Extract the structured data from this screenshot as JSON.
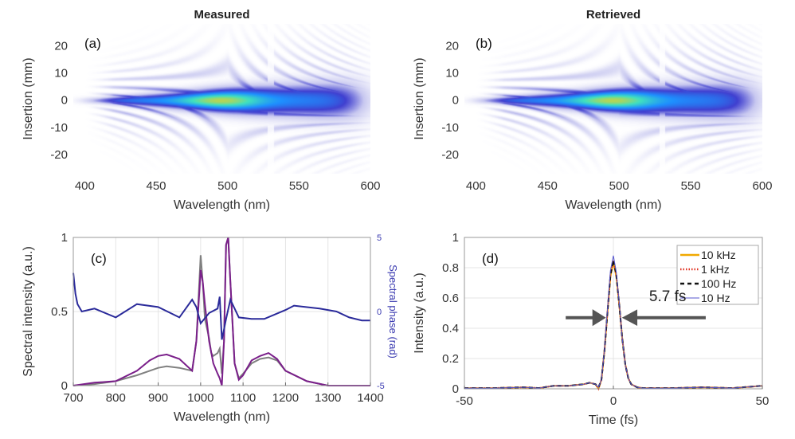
{
  "chart_data": [
    {
      "panel": "(a)",
      "type": "heatmap",
      "title": "Measured",
      "xlabel": "Wavelength (nm)",
      "ylabel": "Insertion (mm)",
      "xticks": [
        400,
        450,
        500,
        550,
        600
      ],
      "yticks": [
        20,
        10,
        0,
        -10,
        -20
      ],
      "xlim": [
        392,
        600
      ],
      "ylim": [
        -27,
        28
      ],
      "colormap": [
        "#ffffff",
        "#c8c8f0",
        "#4040d0",
        "#1e90ff",
        "#40e0c0",
        "#f0d020"
      ]
    },
    {
      "panel": "(b)",
      "type": "heatmap",
      "title": "Retrieved",
      "xlabel": "Wavelength (nm)",
      "ylabel": "Insertion (mm)",
      "xticks": [
        400,
        450,
        500,
        550,
        600
      ],
      "yticks": [
        20,
        10,
        0,
        -10,
        -20
      ],
      "xlim": [
        392,
        600
      ],
      "ylim": [
        -27,
        28
      ],
      "colormap": [
        "#ffffff",
        "#c8c8f0",
        "#4040d0",
        "#1e90ff",
        "#40e0c0",
        "#f0d020"
      ]
    },
    {
      "panel": "(c)",
      "type": "line",
      "xlabel": "Wavelength (nm)",
      "ylabel": "Spectral intensity (a.u.)",
      "y2label": "Spectral phase (rad)",
      "xlim": [
        700,
        1400
      ],
      "ylim": [
        0,
        1
      ],
      "y2lim": [
        -5,
        5
      ],
      "xticks": [
        700,
        800,
        900,
        1000,
        1100,
        1200,
        1300,
        1400
      ],
      "yticks": [
        0,
        0.5,
        1
      ],
      "y2ticks": [
        -5,
        0,
        5
      ],
      "grid": true,
      "series": [
        {
          "axis": "left",
          "color": "#808080",
          "x": [
            700,
            750,
            800,
            850,
            880,
            900,
            920,
            950,
            980,
            990,
            1000,
            1005,
            1010,
            1020,
            1025,
            1030,
            1040,
            1045,
            1050,
            1055,
            1060,
            1065,
            1070,
            1080,
            1090,
            1100,
            1120,
            1140,
            1160,
            1180,
            1200,
            1250,
            1300,
            1400
          ],
          "y": [
            0.0,
            0.01,
            0.03,
            0.07,
            0.1,
            0.12,
            0.13,
            0.12,
            0.1,
            0.3,
            0.88,
            0.7,
            0.45,
            0.32,
            0.22,
            0.2,
            0.22,
            0.25,
            0.08,
            0.3,
            0.95,
            1.0,
            0.7,
            0.15,
            0.05,
            0.08,
            0.15,
            0.18,
            0.19,
            0.17,
            0.1,
            0.03,
            0.0,
            0.0
          ]
        },
        {
          "axis": "left",
          "color": "#7a1f8a",
          "x": [
            700,
            750,
            800,
            850,
            880,
            900,
            920,
            950,
            980,
            990,
            1000,
            1005,
            1010,
            1020,
            1030,
            1040,
            1045,
            1050,
            1055,
            1060,
            1065,
            1070,
            1080,
            1090,
            1100,
            1120,
            1140,
            1160,
            1180,
            1200,
            1250,
            1300,
            1400
          ],
          "y": [
            0.0,
            0.02,
            0.03,
            0.1,
            0.17,
            0.2,
            0.21,
            0.18,
            0.1,
            0.3,
            0.78,
            0.7,
            0.55,
            0.3,
            0.15,
            0.08,
            0.05,
            0.0,
            0.3,
            0.95,
            1.0,
            0.7,
            0.15,
            0.04,
            0.07,
            0.17,
            0.2,
            0.22,
            0.18,
            0.1,
            0.03,
            0.0,
            0.0
          ]
        },
        {
          "axis": "right",
          "color": "#2a2a9a",
          "x": [
            700,
            705,
            710,
            720,
            750,
            800,
            850,
            900,
            950,
            980,
            990,
            1000,
            1020,
            1040,
            1045,
            1050,
            1055,
            1060,
            1070,
            1090,
            1120,
            1150,
            1200,
            1220,
            1280,
            1320,
            1350,
            1380,
            1400
          ],
          "y": [
            2.6,
            1.2,
            0.5,
            0.0,
            0.2,
            -0.4,
            0.5,
            0.3,
            -0.4,
            0.8,
            0.3,
            -0.8,
            -0.1,
            0.2,
            1.0,
            -1.9,
            -1.2,
            -0.5,
            0.8,
            -0.4,
            -0.5,
            -0.5,
            0.1,
            0.4,
            0.2,
            0.0,
            -0.4,
            -0.6,
            -0.6
          ]
        }
      ]
    },
    {
      "panel": "(d)",
      "type": "line",
      "xlabel": "Time (fs)",
      "ylabel": "Intensity (a.u.)",
      "xlim": [
        -50,
        50
      ],
      "ylim": [
        0,
        1
      ],
      "xticks": [
        -50,
        0,
        50
      ],
      "yticks": [
        0,
        0.2,
        0.4,
        0.6,
        0.8,
        1
      ],
      "grid": true,
      "legend": "top-right",
      "annotation": "5.7 fs",
      "series": [
        {
          "name": "10 kHz",
          "color": "#f0a800",
          "style": "solid",
          "x": [
            -50,
            -40,
            -30,
            -25,
            -20,
            -15,
            -10,
            -8,
            -6,
            -5,
            -4,
            -3,
            -2,
            -1,
            0,
            1,
            2,
            3,
            4,
            5,
            6,
            8,
            10,
            20,
            30,
            40,
            50
          ],
          "y": [
            0.005,
            0.005,
            0.01,
            0.005,
            0.02,
            0.02,
            0.03,
            0.04,
            0.03,
            0.0,
            0.06,
            0.25,
            0.5,
            0.74,
            0.84,
            0.74,
            0.55,
            0.33,
            0.16,
            0.07,
            0.03,
            0.01,
            0.005,
            0.005,
            0.01,
            0.005,
            0.02
          ]
        },
        {
          "name": "1 kHz",
          "color": "#e03020",
          "style": "dotted",
          "x": [
            -50,
            -40,
            -30,
            -25,
            -20,
            -15,
            -10,
            -8,
            -6,
            -5,
            -4,
            -3,
            -2,
            -1,
            0,
            1,
            2,
            3,
            4,
            5,
            6,
            8,
            10,
            20,
            30,
            40,
            50
          ],
          "y": [
            0.005,
            0.005,
            0.01,
            0.005,
            0.02,
            0.02,
            0.03,
            0.04,
            0.03,
            0.0,
            0.06,
            0.25,
            0.5,
            0.75,
            0.85,
            0.75,
            0.55,
            0.33,
            0.16,
            0.07,
            0.03,
            0.01,
            0.005,
            0.005,
            0.01,
            0.005,
            0.02
          ]
        },
        {
          "name": "100 Hz",
          "color": "#111111",
          "style": "dashed",
          "x": [
            -50,
            -40,
            -30,
            -25,
            -20,
            -15,
            -10,
            -8,
            -6,
            -5,
            -4,
            -3,
            -2,
            -1,
            0,
            1,
            2,
            3,
            4,
            5,
            6,
            8,
            10,
            20,
            30,
            40,
            50
          ],
          "y": [
            0.005,
            0.005,
            0.01,
            0.005,
            0.02,
            0.02,
            0.03,
            0.04,
            0.03,
            0.01,
            0.06,
            0.25,
            0.5,
            0.75,
            0.85,
            0.75,
            0.55,
            0.33,
            0.16,
            0.07,
            0.03,
            0.01,
            0.005,
            0.005,
            0.01,
            0.005,
            0.02
          ]
        },
        {
          "name": "10 Hz",
          "color": "#5555cc",
          "style": "solid",
          "x": [
            -50,
            -40,
            -30,
            -25,
            -20,
            -15,
            -10,
            -8,
            -6,
            -5,
            -4,
            -3,
            -2,
            -1,
            0,
            1,
            2,
            3,
            4,
            5,
            6,
            8,
            10,
            20,
            30,
            40,
            50
          ],
          "y": [
            0.005,
            0.005,
            0.01,
            0.005,
            0.02,
            0.02,
            0.03,
            0.04,
            0.03,
            0.01,
            0.06,
            0.26,
            0.52,
            0.78,
            0.88,
            0.77,
            0.56,
            0.33,
            0.16,
            0.07,
            0.03,
            0.01,
            0.005,
            0.005,
            0.01,
            0.005,
            0.02
          ]
        }
      ]
    }
  ]
}
